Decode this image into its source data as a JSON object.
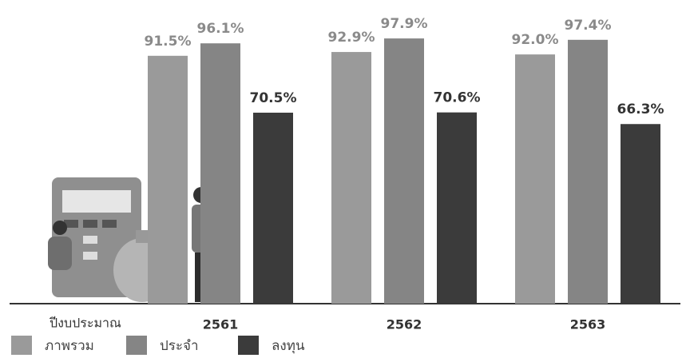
{
  "chart_data": {
    "type": "bar",
    "x_label": "ปีงบประมาณ",
    "categories": [
      "2561",
      "2562",
      "2563"
    ],
    "series": [
      {
        "name": "ภาพรวม",
        "color": "#9a9a9a",
        "values": [
          91.5,
          92.9,
          92.0
        ],
        "value_labels": [
          "91.5%",
          "92.9%",
          "92.0%"
        ]
      },
      {
        "name": "ประจำ",
        "color": "#858585",
        "values": [
          96.1,
          97.9,
          97.4
        ],
        "value_labels": [
          "96.1%",
          "97.9%",
          "97.4%"
        ]
      },
      {
        "name": "ลงทุน",
        "color": "#3b3b3b",
        "values": [
          70.5,
          70.6,
          66.3
        ],
        "value_labels": [
          "70.5%",
          "70.6%",
          "66.3%"
        ]
      }
    ]
  }
}
